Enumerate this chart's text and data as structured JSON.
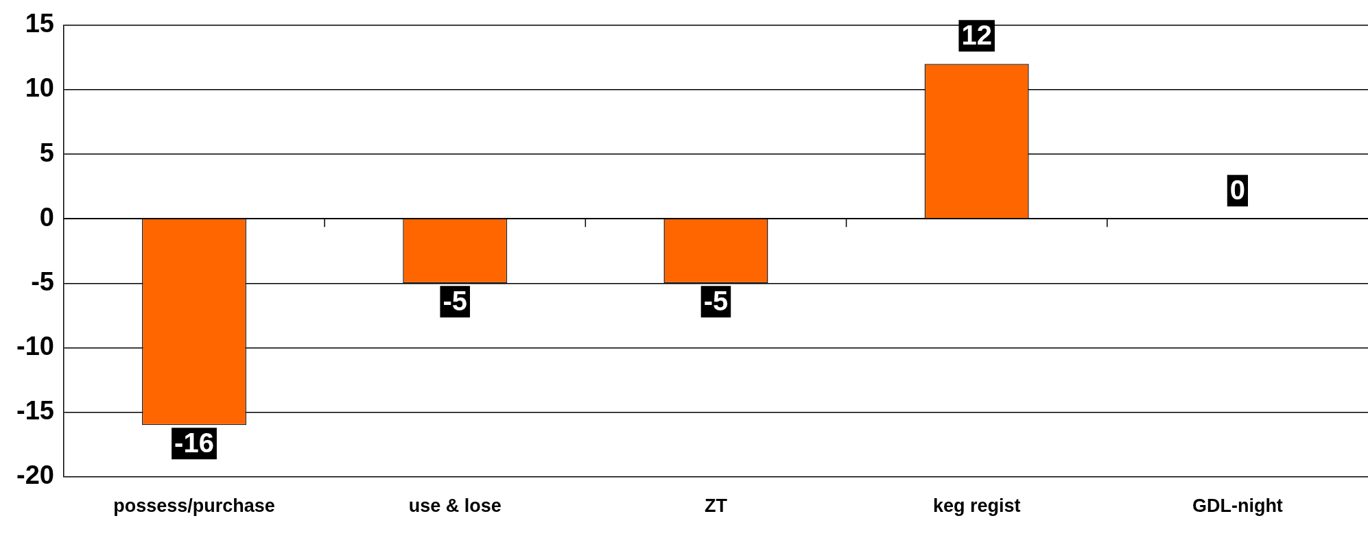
{
  "chart_data": {
    "type": "bar",
    "categories": [
      "possess/purchase",
      "use & lose",
      "ZT",
      "keg regist",
      "GDL-night"
    ],
    "values": [
      -16,
      -5,
      -5,
      12,
      0
    ],
    "color": "#ff6600",
    "ylim": [
      -20,
      15
    ],
    "yticks": [
      -20,
      -15,
      -10,
      -5,
      0,
      5,
      10,
      15
    ],
    "grid": "y",
    "legend": false,
    "data_labels": true
  }
}
